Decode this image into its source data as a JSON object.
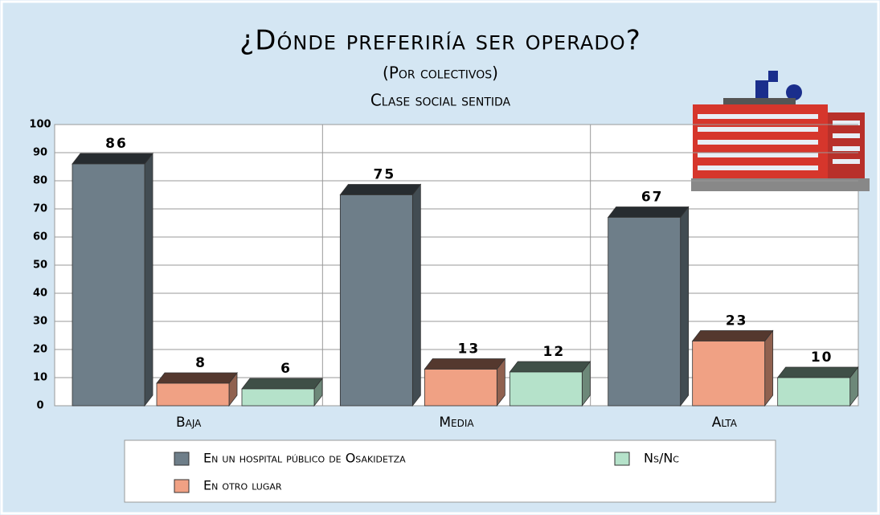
{
  "chart_data": {
    "type": "bar",
    "title": "¿Dónde preferiría ser operado?",
    "subtitle": "(Por colectivos)",
    "caption": "Clase social sentida",
    "categories": [
      "Baja",
      "Media",
      "Alta"
    ],
    "series": [
      {
        "name": "En un hospital público de Osakidetza",
        "color": "#6e7e89",
        "values": [
          86,
          75,
          67
        ]
      },
      {
        "name": "En otro lugar",
        "color": "#f0a184",
        "values": [
          8,
          13,
          23
        ]
      },
      {
        "name": "Ns/Nc",
        "color": "#b5e2ca",
        "values": [
          6,
          12,
          10
        ]
      }
    ],
    "ylim": [
      0,
      100
    ],
    "yticks": [
      0,
      10,
      20,
      30,
      40,
      50,
      60,
      70,
      80,
      90,
      100
    ],
    "grid": true
  }
}
